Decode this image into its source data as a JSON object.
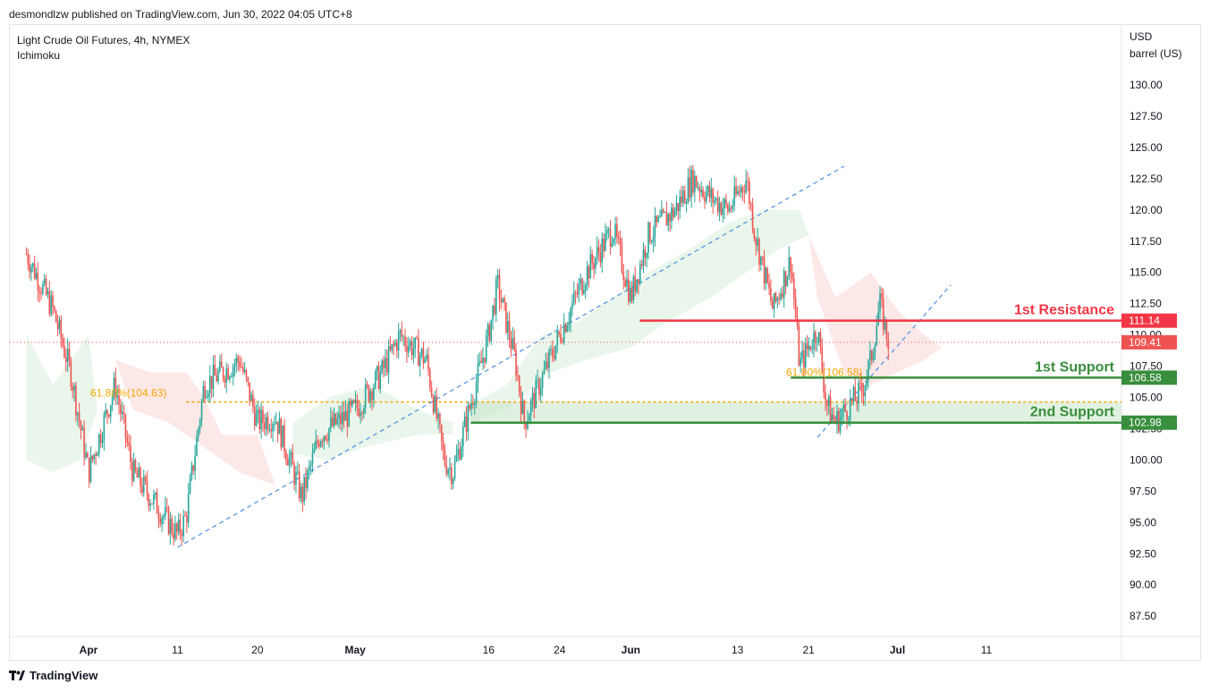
{
  "header": {
    "published": "desmondlzw published on TradingView.com, Jun 30, 2022 04:05 UTC+8"
  },
  "footer": {
    "brand": "TradingView"
  },
  "colors": {
    "bull": "#26a69a",
    "bear": "#ef5350",
    "resistance": "#f23645",
    "support": "#388e3c",
    "fib": "#f7a600",
    "trend": "#2962ff",
    "cloud_bull": "#e8f5e9",
    "cloud_bear": "#fde6e6"
  },
  "chart_data": {
    "type": "candlestick",
    "title": "Light Crude Oil Futures, 4h, NYMEX",
    "subtitle": "Ichimoku",
    "ylabel": "USD",
    "yunit": "barrel (US)",
    "ylim": [
      86,
      133
    ],
    "y_ticks": [
      "87.50",
      "90.00",
      "92.50",
      "95.00",
      "97.50",
      "100.00",
      "102.50",
      "105.00",
      "107.50",
      "110.00",
      "112.50",
      "115.00",
      "117.50",
      "120.00",
      "122.50",
      "125.00",
      "127.50",
      "130.00"
    ],
    "x_ticks": [
      "Apr",
      "11",
      "20",
      "May",
      "16",
      "24",
      "Jun",
      "13",
      "21",
      "Jul",
      "11"
    ],
    "levels": [
      {
        "label": "1st Resistance",
        "value": 111.14,
        "tag": "111.14",
        "color": "#f23645"
      },
      {
        "label": "1st Support",
        "value": 106.58,
        "tag": "106.58",
        "color": "#388e3c"
      },
      {
        "label": "2nd Support",
        "value": 102.98,
        "tag": "102.98",
        "color": "#388e3c"
      }
    ],
    "last_price": {
      "value": 109.41,
      "tag": "109.41"
    },
    "fib_levels": [
      {
        "text": "61.80%(104.63)",
        "value": 104.63
      },
      {
        "text": "61.80%(106.58)",
        "value": 106.58
      }
    ],
    "price_path": [
      [
        "Mar 25",
        116.5
      ],
      [
        "Mar 28",
        112
      ],
      [
        "Mar 30",
        107
      ],
      [
        "Apr 1",
        99
      ],
      [
        "Apr 4",
        106
      ],
      [
        "Apr 6",
        99
      ],
      [
        "Apr 8",
        97
      ],
      [
        "Apr 11",
        94
      ],
      [
        "Apr 12",
        95.5
      ],
      [
        "Apr 14",
        106
      ],
      [
        "Apr 18",
        108
      ],
      [
        "Apr 20",
        103
      ],
      [
        "Apr 22",
        103.5
      ],
      [
        "Apr 25",
        97
      ],
      [
        "Apr 27",
        102
      ],
      [
        "May 1",
        104
      ],
      [
        "May 4",
        107
      ],
      [
        "May 6",
        110
      ],
      [
        "May 9",
        108
      ],
      [
        "May 11",
        100
      ],
      [
        "May 12",
        99
      ],
      [
        "May 16",
        110
      ],
      [
        "May 17",
        114
      ],
      [
        "May 19",
        108
      ],
      [
        "May 20",
        103
      ],
      [
        "May 24",
        110
      ],
      [
        "May 27",
        115
      ],
      [
        "May 30",
        118.5
      ],
      [
        "Jun 1",
        113
      ],
      [
        "Jun 3",
        118
      ],
      [
        "Jun 6",
        120
      ],
      [
        "Jun 8",
        122.5
      ],
      [
        "Jun 10",
        121
      ],
      [
        "Jun 12",
        120
      ],
      [
        "Jun 14",
        122.5
      ],
      [
        "Jun 15",
        118
      ],
      [
        "Jun 17",
        112
      ],
      [
        "Jun 19",
        116
      ],
      [
        "Jun 20",
        107.5
      ],
      [
        "Jun 22",
        110.5
      ],
      [
        "Jun 23",
        104.5
      ],
      [
        "Jun 24",
        103
      ],
      [
        "Jun 27",
        105.5
      ],
      [
        "Jun 28",
        108
      ],
      [
        "Jun 29",
        112.5
      ],
      [
        "Jun 30",
        109.41
      ]
    ]
  }
}
